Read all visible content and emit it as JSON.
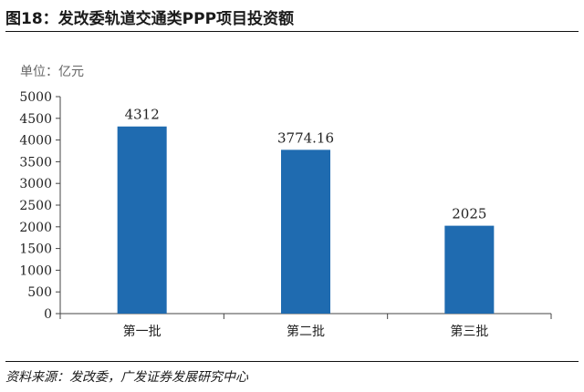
{
  "title": "图18：发改委轨道交通类PPP项目投资额",
  "unit": "单位：亿元",
  "source": "资料来源：发改委，广发证券发展研究中心",
  "chart_data": {
    "type": "bar",
    "categories": [
      "第一批",
      "第二批",
      "第三批"
    ],
    "values": [
      4312,
      3774.16,
      2025
    ],
    "data_labels": [
      "4312",
      "3774.16",
      "2025"
    ],
    "ylim": [
      0,
      5000
    ],
    "yticks": [
      0,
      500,
      1000,
      1500,
      2000,
      2500,
      3000,
      3500,
      4000,
      4500,
      5000
    ],
    "grid": false,
    "bar_color": "#1f6bb0"
  }
}
